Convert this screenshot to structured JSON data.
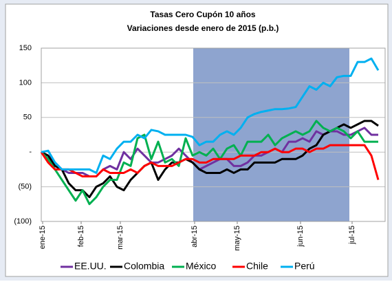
{
  "chart_data": {
    "type": "line",
    "title": "Tasas Cero Cupón 10 años",
    "subtitle": "Variaciones desde enero de 2015 (p.b.)",
    "x": [
      0,
      10,
      20,
      30,
      40,
      50,
      60,
      70,
      80,
      90,
      100,
      110,
      120,
      130,
      140,
      150,
      160,
      170,
      180,
      190,
      200,
      210,
      220,
      230,
      240,
      250,
      260,
      270,
      280,
      290,
      300,
      310,
      320,
      330,
      340,
      350,
      360,
      370,
      380,
      390,
      400,
      410,
      420,
      430,
      440,
      450,
      460,
      470,
      480,
      490
    ],
    "xlim": [
      0,
      500
    ],
    "xticks": [
      {
        "value": 2,
        "label": "ene-15"
      },
      {
        "value": 58,
        "label": "feb-15"
      },
      {
        "value": 115,
        "label": "mar-15"
      },
      {
        "value": 223,
        "label": "abr-15"
      },
      {
        "value": 285,
        "label": "may-15"
      },
      {
        "value": 377,
        "label": "jun-15"
      },
      {
        "value": 452,
        "label": "jul-15"
      }
    ],
    "ylim": [
      -100,
      150
    ],
    "yticks": [
      {
        "value": -100,
        "label": "(100)"
      },
      {
        "value": -50,
        "label": "(50)"
      },
      {
        "value": 0,
        "label": "-"
      },
      50,
      100,
      150
    ],
    "grid": true,
    "highlight": {
      "x": [
        221,
        448
      ],
      "color": "#8ea4cf"
    },
    "series": [
      {
        "name": "EE.UU.",
        "color": "#7030a0",
        "values": [
          0,
          -5,
          -15,
          -25,
          -30,
          -30,
          -30,
          -35,
          -35,
          -25,
          -20,
          -25,
          0,
          -10,
          5,
          -5,
          -15,
          -15,
          -10,
          -5,
          5,
          -5,
          -15,
          -25,
          -20,
          -15,
          -10,
          -10,
          -20,
          -20,
          -15,
          -5,
          -5,
          0,
          5,
          0,
          15,
          15,
          20,
          15,
          30,
          25,
          30,
          30,
          25,
          25,
          30,
          35,
          25,
          25
        ]
      },
      {
        "name": "Colombia",
        "color": "#000000",
        "values": [
          0,
          -5,
          -20,
          -25,
          -45,
          -55,
          -55,
          -65,
          -50,
          -45,
          -35,
          -50,
          -55,
          -40,
          -30,
          -20,
          -15,
          -40,
          -25,
          -15,
          -15,
          -10,
          -15,
          -25,
          -30,
          -30,
          -30,
          -25,
          -30,
          -25,
          -25,
          -15,
          -15,
          -15,
          -15,
          -10,
          -10,
          -10,
          -5,
          5,
          10,
          25,
          30,
          35,
          40,
          35,
          40,
          45,
          45,
          38
        ]
      },
      {
        "name": "México",
        "color": "#00b050",
        "values": [
          0,
          -10,
          -25,
          -40,
          -55,
          -70,
          -55,
          -75,
          -65,
          -50,
          -40,
          -40,
          -15,
          -20,
          20,
          25,
          -10,
          15,
          -15,
          -10,
          -20,
          20,
          -5,
          0,
          -5,
          5,
          -10,
          5,
          10,
          -5,
          15,
          15,
          15,
          25,
          10,
          20,
          25,
          30,
          25,
          30,
          45,
          35,
          30,
          35,
          30,
          20,
          30,
          15,
          15,
          15
        ]
      },
      {
        "name": "Chile",
        "color": "#ff0000",
        "values": [
          0,
          -15,
          -25,
          -25,
          -25,
          -30,
          -35,
          -35,
          -35,
          -25,
          -30,
          -30,
          -30,
          -25,
          -30,
          -20,
          -15,
          -20,
          -20,
          -20,
          -15,
          -10,
          -10,
          -15,
          -15,
          -10,
          -10,
          -10,
          -10,
          -5,
          -5,
          -5,
          0,
          0,
          5,
          0,
          0,
          5,
          5,
          0,
          5,
          5,
          10,
          10,
          10,
          10,
          10,
          10,
          -5,
          -40
        ]
      },
      {
        "name": "Perú",
        "color": "#00b0f0",
        "values": [
          0,
          2,
          -15,
          -25,
          -25,
          -25,
          -25,
          -25,
          -30,
          -5,
          -10,
          5,
          15,
          15,
          25,
          20,
          32,
          30,
          25,
          25,
          25,
          25,
          22,
          10,
          15,
          15,
          25,
          30,
          25,
          35,
          50,
          55,
          58,
          60,
          62,
          62,
          63,
          65,
          80,
          95,
          90,
          100,
          95,
          108,
          110,
          110,
          130,
          130,
          135,
          118
        ]
      }
    ]
  }
}
